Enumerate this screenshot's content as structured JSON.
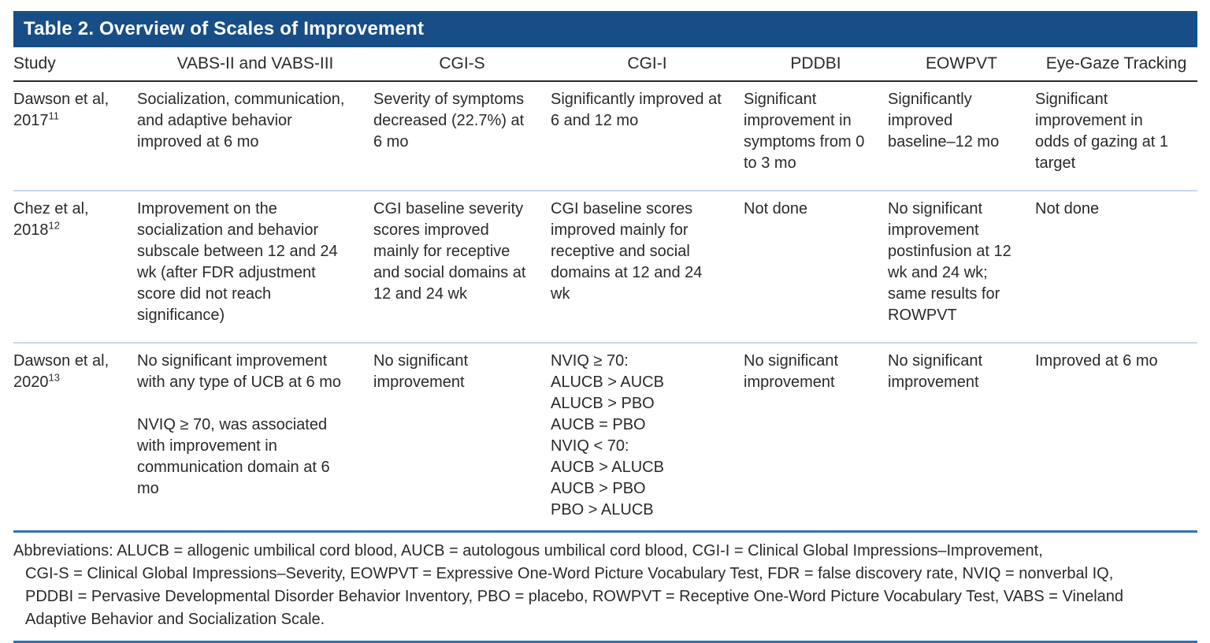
{
  "colors": {
    "title_bar_bg": "#174e87",
    "title_text": "#ffffff",
    "body_text": "#2b2a29",
    "header_rule": "#2b2a29",
    "row_rule": "#c7d9ec",
    "note_rule": "#2e74b5",
    "page_bg": "#ffffff"
  },
  "title": "Table 2. Overview of Scales of Improvement",
  "table": {
    "columns": [
      {
        "key": "study",
        "label": "Study"
      },
      {
        "key": "vabs",
        "label": "VABS-II and VABS-III"
      },
      {
        "key": "cgi_s",
        "label": "CGI-S"
      },
      {
        "key": "cgi_i",
        "label": "CGI-I"
      },
      {
        "key": "pddbi",
        "label": "PDDBI"
      },
      {
        "key": "eowpvt",
        "label": "EOWPVT"
      },
      {
        "key": "eye_gaze",
        "label": "Eye-Gaze Tracking"
      }
    ],
    "rows": [
      {
        "study": {
          "name": "Dawson et al,",
          "year": "2017",
          "ref": "11"
        },
        "cells": {
          "vabs": "Socialization, communication, and adaptive behavior improved at 6 mo",
          "cgi_s": "Severity of symptoms decreased (22.7%) at 6 mo",
          "cgi_i": "Significantly improved at 6 and 12 mo",
          "pddbi": "Significant improvement in symptoms from 0 to 3 mo",
          "eowpvt": "Significantly improved baseline–12 mo",
          "eye_gaze": "Significant improvement in odds of gazing at 1 target"
        }
      },
      {
        "study": {
          "name": "Chez et al,",
          "year": "2018",
          "ref": "12"
        },
        "cells": {
          "vabs": "Improvement on the socialization and behavior subscale between 12 and 24 wk (after FDR adjustment score did not reach significance)",
          "cgi_s": "CGI baseline severity scores improved mainly for receptive and social domains at 12 and 24 wk",
          "cgi_i": "CGI baseline scores improved mainly for receptive and social domains at 12 and 24 wk",
          "pddbi": "Not done",
          "eowpvt": "No significant improvement postinfusion at 12 wk and 24 wk; same results for ROWPVT",
          "eye_gaze": "Not done"
        }
      },
      {
        "study": {
          "name": "Dawson et al,",
          "year": "2020",
          "ref": "13"
        },
        "cells": {
          "vabs": [
            "No significant improvement with any type of UCB at 6 mo",
            "",
            "NVIQ ≥ 70, was associated with improvement in communication domain at 6 mo"
          ],
          "cgi_s": "No significant improvement",
          "cgi_i": [
            "NVIQ ≥ 70:",
            "ALUCB > AUCB",
            "ALUCB > PBO",
            "AUCB = PBO",
            "NVIQ < 70:",
            "AUCB > ALUCB",
            "AUCB > PBO",
            "PBO > ALUCB"
          ],
          "pddbi": "No significant improvement",
          "eowpvt": "No significant improvement",
          "eye_gaze": "Improved at 6 mo"
        }
      }
    ]
  },
  "footnote": {
    "lines": [
      "Abbreviations: ALUCB = allogenic umbilical cord blood, AUCB = autologous umbilical cord blood, CGI-I = Clinical Global Impressions–Improvement,",
      "CGI-S = Clinical Global Impressions–Severity, EOWPVT = Expressive One-Word Picture Vocabulary Test, FDR = false discovery rate, NVIQ = nonverbal IQ,",
      "PDDBI = Pervasive Developmental Disorder Behavior Inventory, PBO = placebo, ROWPVT = Receptive One-Word Picture Vocabulary Test, VABS = Vineland",
      "Adaptive Behavior and Socialization Scale."
    ]
  }
}
